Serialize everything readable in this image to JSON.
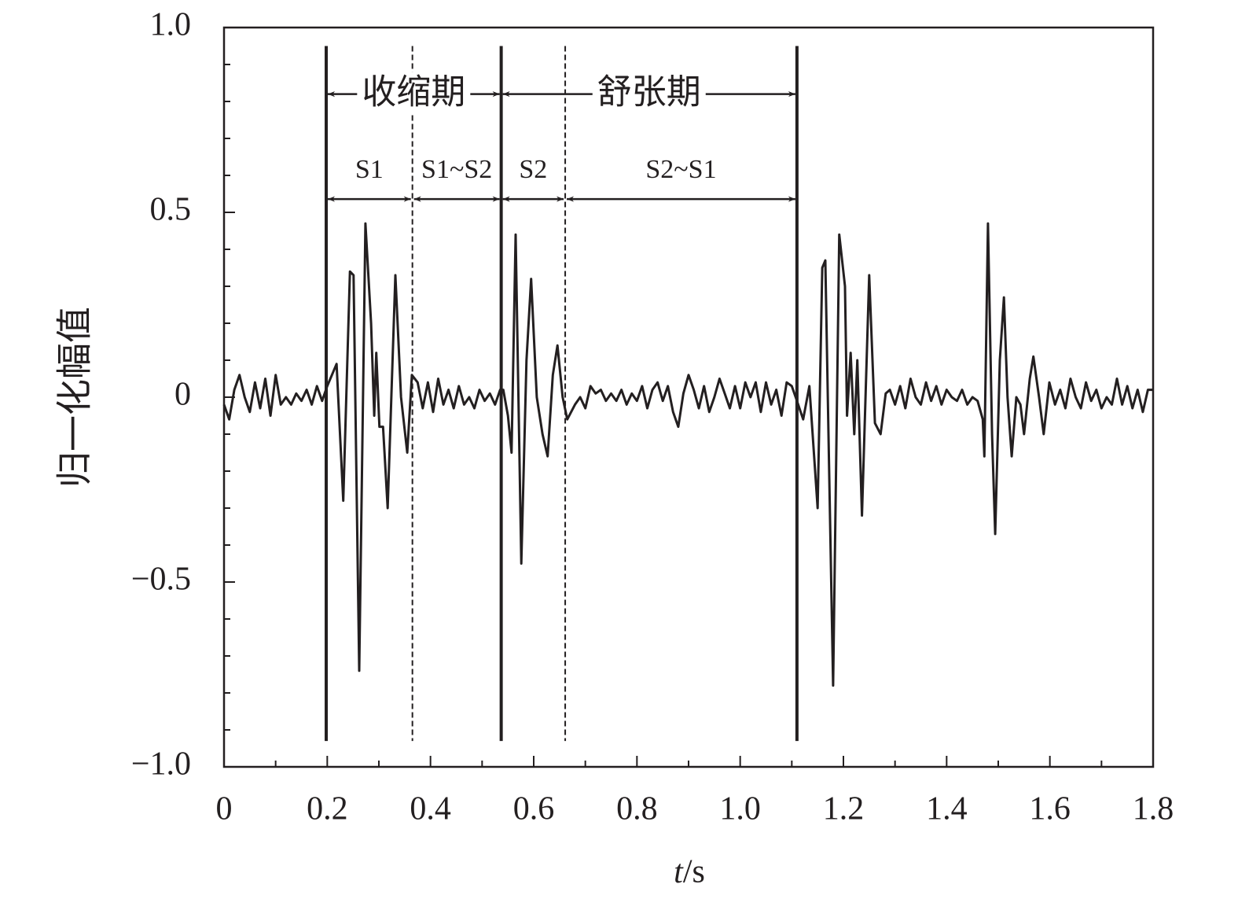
{
  "chart_data": {
    "type": "line",
    "x_label": "t/s",
    "y_label": "归一化幅值",
    "xlim": [
      0,
      1.8
    ],
    "ylim": [
      -1,
      1
    ],
    "xticks": [
      0,
      0.2,
      0.4,
      0.6,
      0.8,
      {
        "value": 1,
        "label": "1.0"
      },
      1.2,
      1.4,
      1.6,
      1.8
    ],
    "yticks": [
      {
        "value": -1,
        "label": "−1.0"
      },
      {
        "value": -0.5,
        "label": "−0.5"
      },
      0,
      0.5,
      {
        "value": 1,
        "label": "1.0"
      }
    ],
    "xticks_minor": [
      0.1,
      0.3,
      0.5,
      0.7,
      0.9,
      1.1,
      1.3,
      1.5,
      1.7
    ],
    "yticks_minor": [
      -0.9,
      -0.8,
      -0.7,
      -0.6,
      -0.4,
      -0.3,
      -0.2,
      -0.1,
      0.1,
      0.2,
      0.3,
      0.4,
      0.6,
      0.7,
      0.8,
      0.9
    ],
    "vlines": [
      {
        "x": 0.198,
        "style": "solid"
      },
      {
        "x": 0.365,
        "style": "dashed"
      },
      {
        "x": 0.537,
        "style": "solid"
      },
      {
        "x": 0.661,
        "style": "dashed"
      },
      {
        "x": 1.11,
        "style": "solid"
      }
    ],
    "vline_ylim": [
      -0.93,
      0.95
    ],
    "phases": {
      "y": 0.82,
      "items": [
        {
          "label": "收缩期",
          "x": [
            0.198,
            0.537
          ]
        },
        {
          "label": "舒张期",
          "x": [
            0.537,
            1.11
          ]
        }
      ]
    },
    "segments": {
      "y": 0.536,
      "label_y": 0.61,
      "items": [
        {
          "label": "S1",
          "x": [
            0.198,
            0.365
          ]
        },
        {
          "label": "S1~S2",
          "x": [
            0.365,
            0.537
          ]
        },
        {
          "label": "S2",
          "x": [
            0.537,
            0.661
          ]
        },
        {
          "label": "S2~S1",
          "x": [
            0.661,
            1.11
          ]
        }
      ]
    },
    "series": [
      {
        "color": "#231f20",
        "x": [
          0,
          0.01,
          0.02,
          0.03,
          0.04,
          0.05,
          0.06,
          0.07,
          0.08,
          0.09,
          0.1,
          0.11,
          0.12,
          0.13,
          0.14,
          0.15,
          0.16,
          0.17,
          0.18,
          0.19,
          0.2,
          0.218,
          0.231,
          0.244,
          0.251,
          0.262,
          0.274,
          0.285,
          0.291,
          0.295,
          0.301,
          0.308,
          0.317,
          0.332,
          0.343,
          0.355,
          0.364,
          0.375,
          0.385,
          0.395,
          0.405,
          0.415,
          0.425,
          0.435,
          0.445,
          0.455,
          0.465,
          0.475,
          0.485,
          0.495,
          0.505,
          0.515,
          0.525,
          0.535,
          0.541,
          0.55,
          0.557,
          0.565,
          0.576,
          0.586,
          0.595,
          0.606,
          0.617,
          0.627,
          0.637,
          0.646,
          0.656,
          0.665,
          0.68,
          0.69,
          0.7,
          0.71,
          0.72,
          0.73,
          0.74,
          0.75,
          0.76,
          0.77,
          0.78,
          0.79,
          0.8,
          0.81,
          0.82,
          0.83,
          0.84,
          0.85,
          0.86,
          0.87,
          0.88,
          0.89,
          0.9,
          0.91,
          0.92,
          0.93,
          0.94,
          0.95,
          0.96,
          0.97,
          0.98,
          0.99,
          1.0,
          1.01,
          1.02,
          1.03,
          1.04,
          1.05,
          1.06,
          1.07,
          1.08,
          1.09,
          1.1,
          1.11,
          1.122,
          1.134,
          1.15,
          1.159,
          1.165,
          1.171,
          1.18,
          1.192,
          1.203,
          1.207,
          1.214,
          1.221,
          1.227,
          1.236,
          1.25,
          1.261,
          1.272,
          1.282,
          1.29,
          1.3,
          1.31,
          1.32,
          1.33,
          1.34,
          1.35,
          1.36,
          1.37,
          1.38,
          1.39,
          1.4,
          1.41,
          1.42,
          1.43,
          1.44,
          1.45,
          1.46,
          1.47,
          1.473,
          1.48,
          1.488,
          1.494,
          1.503,
          1.511,
          1.518,
          1.526,
          1.535,
          1.543,
          1.55,
          1.561,
          1.568,
          1.579,
          1.588,
          1.599,
          1.61,
          1.62,
          1.63,
          1.64,
          1.65,
          1.66,
          1.67,
          1.68,
          1.69,
          1.7,
          1.71,
          1.72,
          1.73,
          1.74,
          1.75,
          1.76,
          1.77,
          1.78,
          1.79,
          1.8
        ],
        "values": [
          -0.02,
          -0.06,
          0.02,
          0.06,
          0,
          -0.04,
          0.04,
          -0.03,
          0.05,
          -0.05,
          0.06,
          -0.02,
          0,
          -0.02,
          0.01,
          -0.01,
          0.02,
          -0.02,
          0.03,
          -0.01,
          0.03,
          0.09,
          -0.28,
          0.34,
          0.33,
          -0.74,
          0.47,
          0.2,
          -0.05,
          0.12,
          -0.08,
          -0.08,
          -0.3,
          0.33,
          0,
          -0.15,
          0.06,
          0.04,
          -0.03,
          0.04,
          -0.04,
          0.05,
          -0.02,
          0.02,
          -0.03,
          0.03,
          -0.02,
          0,
          -0.03,
          0.02,
          -0.01,
          0.01,
          -0.02,
          0.02,
          0.02,
          -0.05,
          -0.15,
          0.44,
          -0.45,
          0.1,
          0.32,
          0,
          -0.1,
          -0.16,
          0.06,
          0.14,
          0,
          -0.06,
          -0.02,
          0,
          -0.03,
          0.03,
          0.01,
          0.02,
          -0.01,
          0.01,
          -0.01,
          0.02,
          -0.02,
          0.01,
          -0.01,
          0.03,
          -0.03,
          0.02,
          0.04,
          -0.01,
          0.03,
          -0.04,
          -0.08,
          0.01,
          0.06,
          0.02,
          -0.03,
          0.03,
          -0.04,
          0,
          0.05,
          0.01,
          -0.03,
          0.03,
          -0.03,
          0.04,
          0,
          0.04,
          -0.04,
          0.04,
          -0.02,
          0.02,
          -0.05,
          0.04,
          0.03,
          -0.01,
          -0.06,
          0.03,
          -0.3,
          0.35,
          0.37,
          -0.1,
          -0.78,
          0.44,
          0.3,
          -0.05,
          0.12,
          -0.1,
          0.1,
          -0.32,
          0.33,
          -0.07,
          -0.1,
          0.01,
          0.02,
          -0.02,
          0.03,
          -0.03,
          0.05,
          0,
          -0.02,
          0.04,
          -0.01,
          0.03,
          -0.02,
          0.02,
          0,
          -0.01,
          0.02,
          -0.02,
          0,
          -0.01,
          -0.06,
          -0.16,
          0.47,
          -0.1,
          -0.37,
          0.1,
          0.27,
          0,
          -0.16,
          0,
          -0.02,
          -0.1,
          0.05,
          0.11,
          0,
          -0.1,
          0.04,
          -0.02,
          0.02,
          -0.03,
          0.05,
          0,
          -0.03,
          0.04,
          -0.01,
          0.02,
          -0.03,
          0,
          -0.02,
          0.05,
          -0.02,
          0.03,
          -0.03,
          0.02,
          -0.04,
          0.02,
          0.02
        ]
      }
    ]
  }
}
